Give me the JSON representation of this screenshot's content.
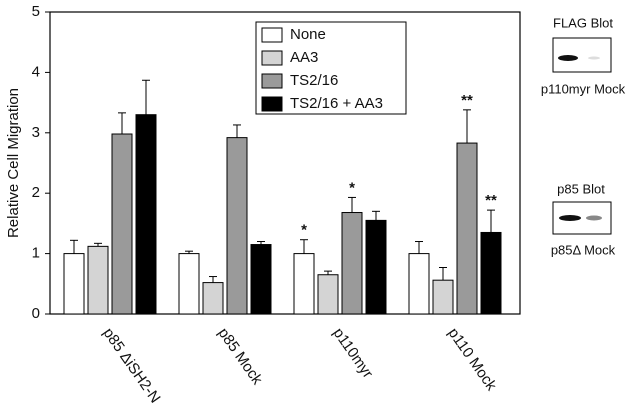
{
  "chart_data": {
    "type": "bar",
    "y_label": "Relative Cell Migration",
    "categories": [
      "p85 ΔiSH2-N",
      "p85 Mock",
      "p110myr",
      "p110 Mock"
    ],
    "series": [
      {
        "name": "None",
        "color": "#ffffff",
        "values": [
          1.0,
          1.0,
          1.0,
          1.0
        ],
        "errors": [
          0.22,
          0.04,
          0.23,
          0.2
        ],
        "value_annotations": [
          null,
          null,
          "*",
          null
        ]
      },
      {
        "name": "AA3",
        "color": "#d4d4d4",
        "values": [
          1.12,
          0.52,
          0.65,
          0.56
        ],
        "errors": [
          0.05,
          0.1,
          0.06,
          0.21
        ],
        "value_annotations": [
          null,
          null,
          null,
          null
        ]
      },
      {
        "name": "TS2/16",
        "color": "#9a9a9a",
        "values": [
          2.98,
          2.92,
          1.68,
          2.83
        ],
        "errors": [
          0.35,
          0.21,
          0.25,
          0.55
        ],
        "value_annotations": [
          null,
          null,
          "*",
          "**"
        ]
      },
      {
        "name": "TS2/16 + AA3",
        "color": "#000000",
        "values": [
          3.3,
          1.15,
          1.55,
          1.35
        ],
        "errors": [
          0.57,
          0.05,
          0.15,
          0.37
        ],
        "value_annotations": [
          null,
          null,
          null,
          "**"
        ]
      }
    ],
    "ylim": [
      0,
      5
    ],
    "yticks": [
      0,
      1,
      2,
      3,
      4,
      5
    ]
  },
  "blots": [
    {
      "title": "FLAG Blot",
      "lanes": "p110myr Mock"
    },
    {
      "title": "p85 Blot",
      "lanes": "p85Δ Mock"
    }
  ]
}
